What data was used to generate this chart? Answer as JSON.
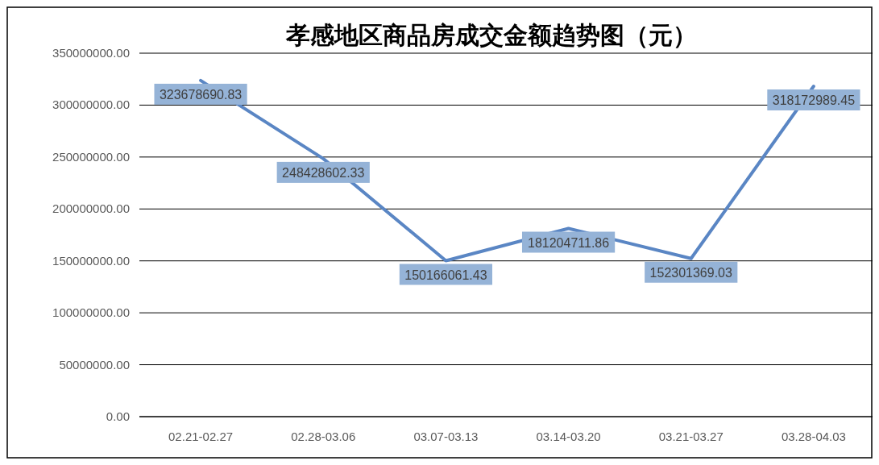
{
  "chart_data": {
    "type": "line",
    "title": "孝感地区商品房成交金额趋势图（元）",
    "categories": [
      "02.21-02.27",
      "02.28-03.06",
      "03.07-03.13",
      "03.14-03.20",
      "03.21-03.27",
      "03.28-04.03"
    ],
    "series": [
      {
        "color": "#5a86c4",
        "values": [
          323678690.83,
          248428602.33,
          150166061.43,
          181204711.86,
          152301369.03,
          318172989.45
        ]
      }
    ],
    "ylim": [
      0,
      350000000
    ],
    "yticks": [
      {
        "value": 0,
        "label": "0.00"
      },
      {
        "value": 50000000,
        "label": "50000000.00"
      },
      {
        "value": 100000000,
        "label": "100000000.00"
      },
      {
        "value": 150000000,
        "label": "150000000.00"
      },
      {
        "value": 200000000,
        "label": "200000000.00"
      },
      {
        "value": 250000000,
        "label": "250000000.00"
      },
      {
        "value": 300000000,
        "label": "300000000.00"
      },
      {
        "value": 350000000,
        "label": "350000000.00"
      }
    ],
    "grid": "y",
    "data_labels": true,
    "marker": "none",
    "line_style": "solid"
  }
}
